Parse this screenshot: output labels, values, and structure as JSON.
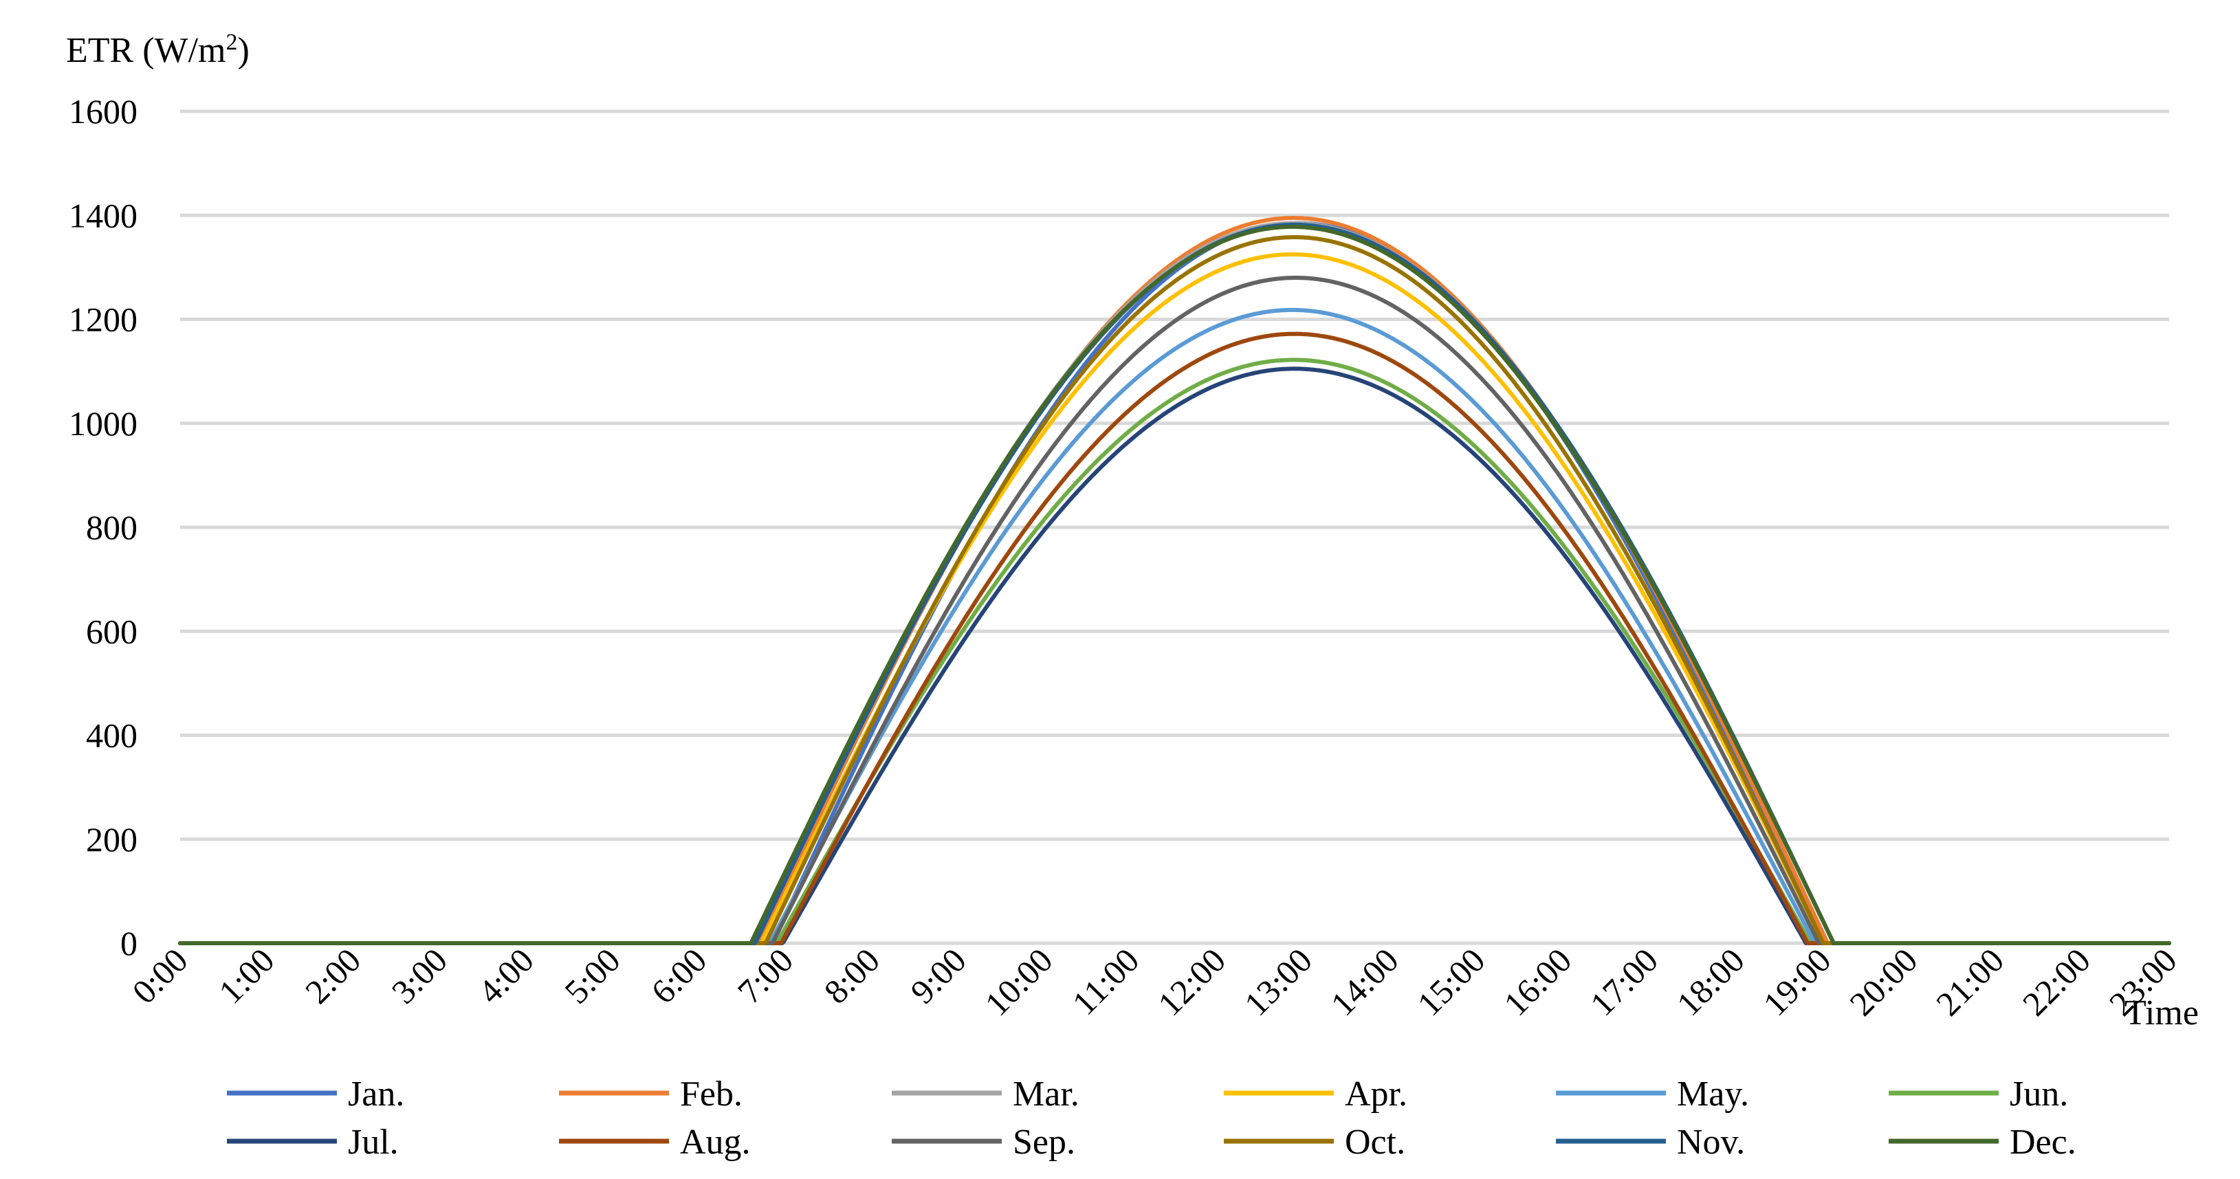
{
  "chart_data": {
    "type": "line",
    "title": "",
    "ylabel": "ETR (W/m",
    "ylabel_sup": "2",
    "ylabel_close": ")",
    "xlabel": "Time",
    "ylim": [
      0,
      1600
    ],
    "yticks": [
      0,
      200,
      400,
      600,
      800,
      1000,
      1200,
      1400,
      1600
    ],
    "grid": true,
    "legend_position": "bottom",
    "x": [
      "0:00",
      "1:00",
      "2:00",
      "3:00",
      "4:00",
      "5:00",
      "6:00",
      "7:00",
      "8:00",
      "9:00",
      "10:00",
      "11:00",
      "12:00",
      "13:00",
      "14:00",
      "15:00",
      "16:00",
      "17:00",
      "18:00",
      "19:00",
      "20:00",
      "21:00",
      "22:00",
      "23:00"
    ],
    "series": [
      {
        "name": "Jan.",
        "color": "#4472C4",
        "peak": 1385,
        "sunrise": 6.85,
        "sunset": 19.0
      },
      {
        "name": "Feb.",
        "color": "#ED7D31",
        "peak": 1395,
        "sunrise": 6.7,
        "sunset": 19.05
      },
      {
        "name": "Mar.",
        "color": "#A5A5A5",
        "peak": 1385,
        "sunrise": 6.62,
        "sunset": 19.12
      },
      {
        "name": "Apr.",
        "color": "#FFC000",
        "peak": 1325,
        "sunrise": 6.72,
        "sunset": 19.0
      },
      {
        "name": "May.",
        "color": "#5B9BD5",
        "peak": 1218,
        "sunrise": 6.82,
        "sunset": 18.9
      },
      {
        "name": "Jun.",
        "color": "#70AD47",
        "peak": 1122,
        "sunrise": 6.9,
        "sunset": 18.85
      },
      {
        "name": "Jul.",
        "color": "#264478",
        "peak": 1105,
        "sunrise": 6.97,
        "sunset": 18.8
      },
      {
        "name": "Aug.",
        "color": "#9E480E",
        "peak": 1172,
        "sunrise": 6.95,
        "sunset": 18.82
      },
      {
        "name": "Sep.",
        "color": "#636363",
        "peak": 1280,
        "sunrise": 6.85,
        "sunset": 18.95
      },
      {
        "name": "Oct.",
        "color": "#997300",
        "peak": 1358,
        "sunrise": 6.77,
        "sunset": 19.0
      },
      {
        "name": "Nov.",
        "color": "#255E91",
        "peak": 1382,
        "sunrise": 6.65,
        "sunset": 19.12
      },
      {
        "name": "Dec.",
        "color": "#43682B",
        "peak": 1378,
        "sunrise": 6.6,
        "sunset": 19.12
      }
    ]
  }
}
